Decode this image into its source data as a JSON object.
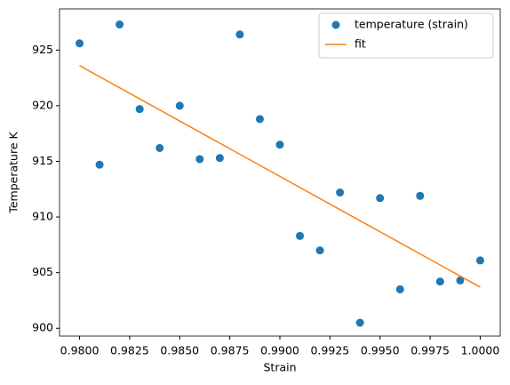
{
  "chart_data": {
    "type": "scatter",
    "xlabel": "Strain",
    "ylabel": "Temperature K",
    "xlim": [
      0.979,
      1.001
    ],
    "ylim": [
      899.3,
      928.7
    ],
    "xticks": [
      {
        "value": 0.98,
        "label": "0.9800"
      },
      {
        "value": 0.9825,
        "label": "0.9825"
      },
      {
        "value": 0.985,
        "label": "0.9850"
      },
      {
        "value": 0.9875,
        "label": "0.9875"
      },
      {
        "value": 0.99,
        "label": "0.9900"
      },
      {
        "value": 0.9925,
        "label": "0.9925"
      },
      {
        "value": 0.995,
        "label": "0.9950"
      },
      {
        "value": 0.9975,
        "label": "0.9975"
      },
      {
        "value": 1.0,
        "label": "1.0000"
      }
    ],
    "yticks": [
      900,
      905,
      910,
      915,
      920,
      925
    ],
    "legend": "upper right",
    "series": [
      {
        "name": "temperature (strain)",
        "type": "scatter",
        "color": "#1f77b4",
        "x": [
          0.98,
          0.981,
          0.982,
          0.983,
          0.984,
          0.985,
          0.986,
          0.987,
          0.988,
          0.989,
          0.99,
          0.991,
          0.992,
          0.993,
          0.994,
          0.995,
          0.996,
          0.997,
          0.998,
          0.999,
          1.0
        ],
        "values": [
          925.6,
          914.7,
          927.3,
          919.7,
          916.2,
          920.0,
          915.2,
          915.3,
          926.4,
          918.8,
          916.5,
          908.3,
          907.0,
          912.2,
          900.5,
          911.7,
          903.5,
          911.9,
          904.2,
          904.3,
          906.1
        ]
      },
      {
        "name": "fit",
        "type": "line",
        "color": "#ff7f0e",
        "x": [
          0.98,
          1.0
        ],
        "values": [
          923.6,
          903.7
        ]
      }
    ]
  }
}
